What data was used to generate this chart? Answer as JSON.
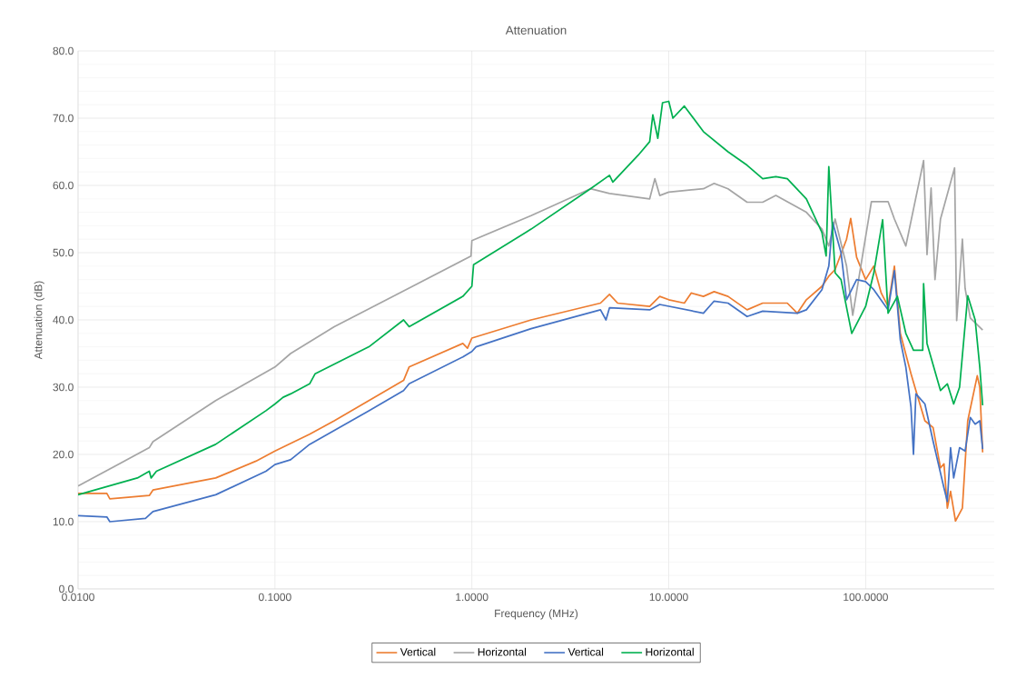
{
  "chart_data": {
    "type": "line",
    "title": "Attenuation",
    "xlabel": "Frequency (MHz)",
    "ylabel": "Attenuation (dB)",
    "log": "x",
    "grid": true,
    "legend": "bottom",
    "marker": "none",
    "line_style": "solid",
    "xlim": [
      0.01,
      450
    ],
    "ylim": [
      0,
      80
    ],
    "xticks": [
      {
        "value": 0.01,
        "label": "0.0100"
      },
      {
        "value": 0.1,
        "label": "0.1000"
      },
      {
        "value": 1,
        "label": "1.0000"
      },
      {
        "value": 10,
        "label": "10.0000"
      },
      {
        "value": 100,
        "label": "100.0000"
      }
    ],
    "yticks": [
      {
        "value": 0,
        "label": "0.0"
      },
      {
        "value": 10,
        "label": "10.0"
      },
      {
        "value": 20,
        "label": "20.0"
      },
      {
        "value": 30,
        "label": "30.0"
      },
      {
        "value": 40,
        "label": "40.0"
      },
      {
        "value": 50,
        "label": "50.0"
      },
      {
        "value": 60,
        "label": "60.0"
      },
      {
        "value": 70,
        "label": "70.0"
      },
      {
        "value": 80,
        "label": "80.0"
      }
    ],
    "series": [
      {
        "name": "Vertical",
        "color": "#ed7d31",
        "x": [
          0.01,
          0.014,
          0.0145,
          0.023,
          0.024,
          0.05,
          0.08,
          0.1,
          0.15,
          0.2,
          0.45,
          0.48,
          0.9,
          0.95,
          1.0,
          2,
          4.5,
          5,
          5.5,
          8,
          9,
          10,
          12,
          13,
          15,
          17,
          20,
          25,
          30,
          40,
          45,
          50,
          60,
          65,
          70,
          80,
          84,
          90,
          100,
          110,
          120,
          130,
          140,
          150,
          170,
          180,
          200,
          220,
          240,
          250,
          260,
          270,
          286,
          310,
          330,
          369,
          380,
          393
        ],
        "values": [
          14.2,
          14.2,
          13.4,
          13.9,
          14.7,
          16.5,
          19,
          20.5,
          23,
          25,
          31,
          33,
          36.5,
          35.8,
          37.3,
          40,
          42.5,
          43.8,
          42.5,
          42,
          43.5,
          43,
          42.5,
          44,
          43.5,
          44.2,
          43.5,
          41.5,
          42.5,
          42.5,
          41,
          43,
          45,
          46.5,
          47.5,
          52,
          55.1,
          49.3,
          46,
          48,
          44,
          42,
          48,
          38,
          32,
          29.5,
          25,
          24,
          18,
          18.6,
          12,
          14.5,
          10.1,
          12,
          25,
          31.7,
          30,
          20.3
        ]
      },
      {
        "name": "Horizontal",
        "color": "#a5a5a5",
        "x": [
          0.01,
          0.023,
          0.024,
          0.05,
          0.1,
          0.12,
          0.2,
          0.5,
          0.99,
          1.0,
          2,
          4,
          5,
          8,
          8.5,
          9,
          10,
          15,
          17,
          20,
          25,
          30,
          35,
          50,
          60,
          65,
          70,
          80,
          86,
          107,
          130,
          140,
          160,
          197,
          205,
          215,
          225,
          240,
          283,
          290,
          310,
          320,
          340,
          393
        ],
        "values": [
          15.3,
          21.0,
          21.9,
          28,
          33,
          35,
          39,
          45,
          49.5,
          51.8,
          55.5,
          59.5,
          58.8,
          58,
          61,
          58.5,
          59,
          59.5,
          60.3,
          59.5,
          57.5,
          57.5,
          58.5,
          56,
          53.5,
          51,
          55,
          48,
          40.7,
          57.6,
          57.6,
          55,
          51,
          63.7,
          49.7,
          59.6,
          46,
          55,
          62.6,
          39.9,
          52,
          44.7,
          40.3,
          38.5
        ]
      },
      {
        "name": "Vertical",
        "color": "#4472c4",
        "x": [
          0.01,
          0.014,
          0.0145,
          0.022,
          0.024,
          0.05,
          0.09,
          0.1,
          0.12,
          0.15,
          0.3,
          0.45,
          0.48,
          0.9,
          1.0,
          1.05,
          2,
          4.5,
          4.8,
          5,
          8,
          9,
          15,
          17,
          20,
          25,
          30,
          45,
          50,
          60,
          65,
          68,
          75,
          80,
          90,
          100,
          110,
          130,
          140,
          150,
          160,
          170,
          175,
          180,
          200,
          220,
          250,
          260,
          270,
          280,
          300,
          320,
          340,
          360,
          380,
          393
        ],
        "values": [
          10.9,
          10.7,
          10.0,
          10.5,
          11.5,
          14,
          17.5,
          18.5,
          19.2,
          21.5,
          26.5,
          29.5,
          30.5,
          34.5,
          35.3,
          36,
          38.7,
          41.5,
          40,
          41.8,
          41.5,
          42.3,
          41,
          42.8,
          42.5,
          40.5,
          41.3,
          41,
          41.5,
          44.5,
          48,
          54.5,
          50,
          43,
          46,
          45.7,
          44.5,
          41.5,
          47.3,
          37,
          33,
          27,
          20,
          29,
          27.5,
          22,
          15,
          13,
          21,
          16.5,
          21,
          20.5,
          25.5,
          24.5,
          25,
          20.8
        ]
      },
      {
        "name": "Horizontal",
        "color": "#00b050",
        "x": [
          0.01,
          0.02,
          0.023,
          0.0235,
          0.025,
          0.05,
          0.09,
          0.1,
          0.11,
          0.12,
          0.15,
          0.16,
          0.3,
          0.45,
          0.48,
          0.9,
          1.0,
          1.02,
          2,
          4,
          5,
          5.2,
          7,
          8,
          8.3,
          8.8,
          9.3,
          10,
          10.5,
          12,
          15,
          20,
          25,
          30,
          35,
          40,
          50,
          60,
          63,
          65,
          70,
          75,
          85,
          100,
          110,
          122,
          130,
          145,
          160,
          175,
          185,
          195,
          197,
          205,
          240,
          260,
          280,
          300,
          330,
          360,
          380,
          393
        ],
        "values": [
          14.0,
          16.5,
          17.5,
          16.5,
          17.5,
          21.5,
          26.5,
          27.5,
          28.5,
          29,
          30.5,
          32,
          36,
          40,
          39,
          43.5,
          45,
          48.2,
          53.5,
          59.5,
          61.5,
          60.5,
          64.5,
          66.5,
          70.5,
          67,
          72.3,
          72.5,
          70,
          71.8,
          68,
          65,
          63,
          61,
          61.3,
          61,
          58,
          53,
          49.5,
          62.8,
          47,
          46,
          38,
          42,
          47,
          54.9,
          41,
          43.5,
          38,
          35.5,
          35.5,
          35.5,
          45.4,
          36.5,
          29.5,
          30.5,
          27.5,
          30,
          43.6,
          40,
          33,
          27.3
        ]
      }
    ]
  }
}
